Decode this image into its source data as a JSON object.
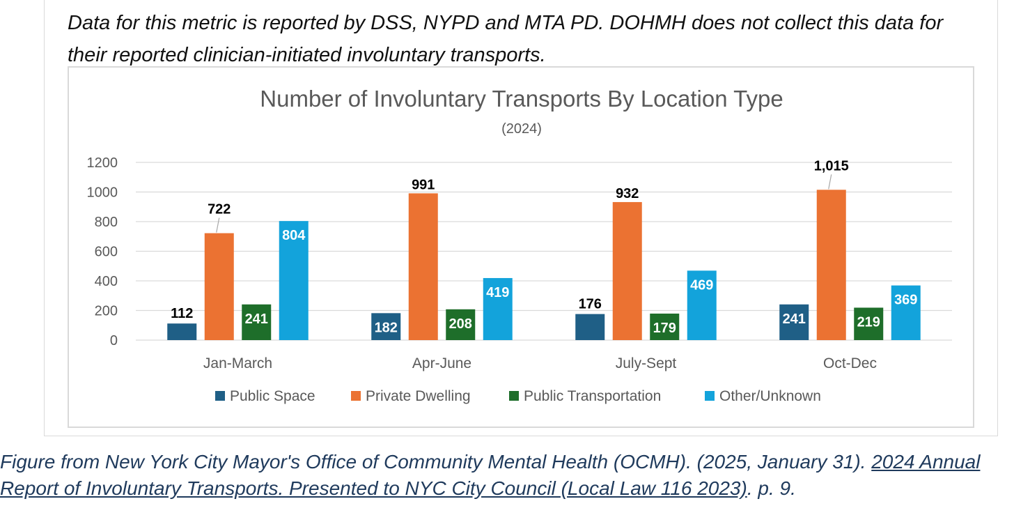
{
  "note": "Data for this metric is reported by DSS, NYPD and MTA PD. DOHMH does not collect this data for their reported clinician-initiated involuntary transports.",
  "caption": {
    "prefix": "Figure from New York City Mayor's Office of Community Mental Health (OCMH). (2025, January 31). ",
    "link_text": "2024 Annual Report of Involuntary Transports. Presented to NYC City Council (Local Law 116 2023)",
    "suffix": ".  p. 9."
  },
  "chart_data": {
    "type": "bar",
    "title": "Number of Involuntary Transports By  Location Type",
    "subtitle": "(2024)",
    "categories": [
      "Jan-March",
      "Apr-June",
      "July-Sept",
      "Oct-Dec"
    ],
    "series": [
      {
        "name": "Public Space",
        "color": "#1f5f86",
        "values": [
          112,
          182,
          176,
          241
        ],
        "labels": [
          "112",
          "182",
          "176",
          "241"
        ]
      },
      {
        "name": "Private Dwelling",
        "color": "#eb7232",
        "values": [
          722,
          991,
          932,
          1015
        ],
        "labels": [
          "722",
          "991",
          "932",
          "1,015"
        ]
      },
      {
        "name": "Public Transportation",
        "color": "#1e6e2a",
        "values": [
          241,
          208,
          179,
          219
        ],
        "labels": [
          "241",
          "208",
          "179",
          "219"
        ]
      },
      {
        "name": "Other/Unknown",
        "color": "#13a3db",
        "values": [
          804,
          419,
          469,
          369
        ],
        "labels": [
          "804",
          "419",
          "469",
          "369"
        ]
      }
    ],
    "ylim": [
      0,
      1200
    ],
    "yticks": [
      0,
      200,
      400,
      600,
      800,
      1000,
      1200
    ],
    "grid": true,
    "legend": "bottom"
  }
}
